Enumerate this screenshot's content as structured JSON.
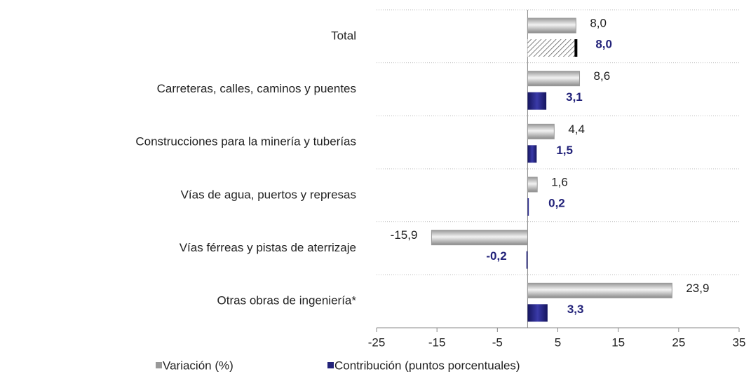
{
  "chart_data": {
    "type": "hbar",
    "categories": [
      "Total",
      "Carreteras, calles, caminos y puentes",
      "Construcciones para la minería y tuberías",
      "Vías de agua, puertos y represas",
      "Vías férreas y pistas de aterrizaje",
      "Otras obras de ingeniería*"
    ],
    "series": [
      {
        "name": "Variación (%)",
        "color": "#bfbfbf",
        "values": [
          8.0,
          8.6,
          4.4,
          1.6,
          -15.9,
          23.9
        ],
        "value_labels": [
          "8,0",
          "8,6",
          "4,4",
          "1,6",
          "-15,9",
          "23,9"
        ]
      },
      {
        "name": "Contribución (puntos porcentuales)",
        "color": "#23237a",
        "values": [
          8.0,
          3.1,
          1.5,
          0.2,
          -0.2,
          3.3
        ],
        "value_labels": [
          "8,0",
          "3,1",
          "1,5",
          "0,2",
          "-0,2",
          "3,3"
        ]
      }
    ],
    "xlim": [
      -25,
      35
    ],
    "xticks": [
      -25,
      -15,
      -5,
      5,
      15,
      25,
      35
    ],
    "grid": true
  }
}
